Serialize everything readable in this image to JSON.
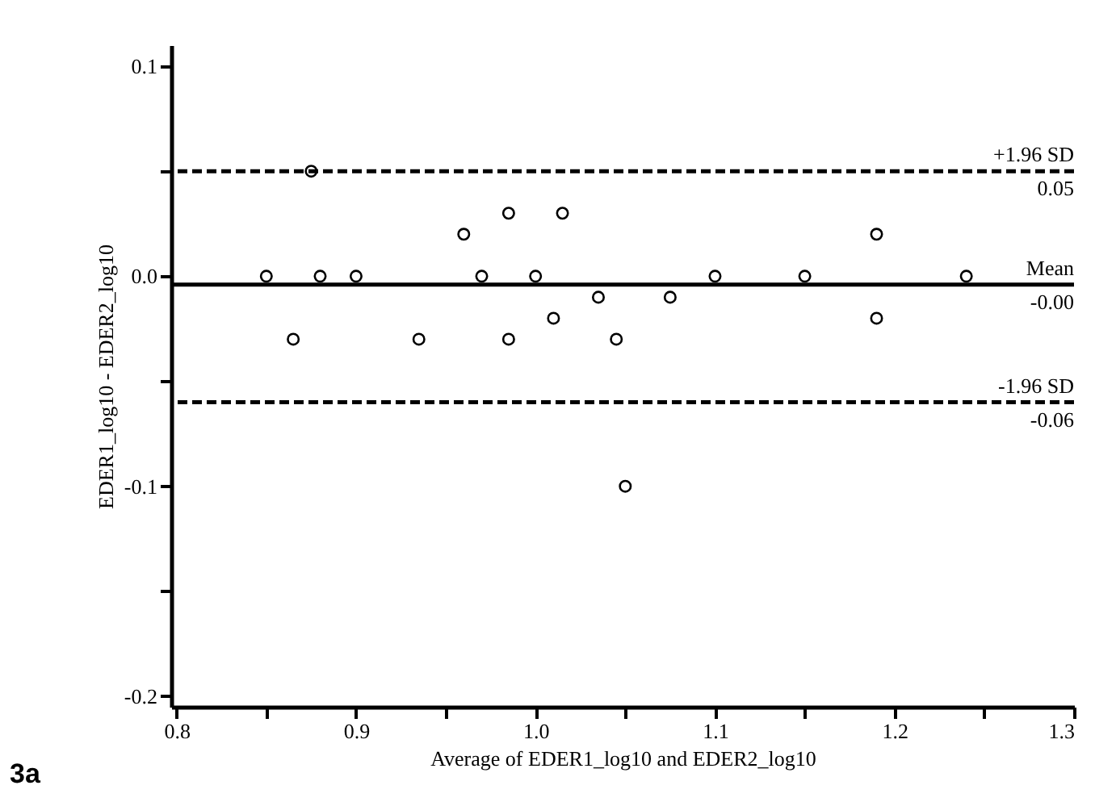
{
  "chart_data": {
    "type": "scatter",
    "xlabel": "Average of EDER1_log10 and EDER2_log10",
    "ylabel": "EDER1_log10 - EDER2_log10",
    "x": [
      0.85,
      0.865,
      0.875,
      0.88,
      0.9,
      0.935,
      0.96,
      0.97,
      0.985,
      0.985,
      1.0,
      1.01,
      1.015,
      1.035,
      1.045,
      1.05,
      1.075,
      1.1,
      1.15,
      1.19,
      1.19,
      1.24
    ],
    "series": [
      {
        "color": "#000000",
        "values": [
          0,
          -0.03,
          0.05,
          0,
          0,
          -0.03,
          0.02,
          0,
          0.03,
          -0.03,
          0,
          -0.02,
          0.03,
          -0.01,
          -0.03,
          -0.1,
          -0.01,
          0,
          0,
          0.02,
          -0.02,
          0
        ]
      }
    ],
    "marker": "circle",
    "grid": false,
    "legend": false,
    "xlim": [
      0.797,
      1.3
    ],
    "ylim": [
      -0.205,
      0.11
    ],
    "xticks": [
      0.8,
      {
        "value": 0.85,
        "label": null
      },
      0.9,
      {
        "value": 0.95,
        "label": null
      },
      {
        "value": 1.0,
        "label": "1.0"
      },
      {
        "value": 1.05,
        "label": null
      },
      1.1,
      {
        "value": 1.15,
        "label": null
      },
      1.2,
      {
        "value": 1.25,
        "label": null
      },
      1.3
    ],
    "yticks": [
      0.1,
      {
        "value": 0.05,
        "label": null
      },
      {
        "value": 0,
        "label": "0.0"
      },
      {
        "value": -0.05,
        "label": null
      },
      -0.1,
      {
        "value": -0.15,
        "label": null
      },
      -0.2
    ],
    "ref_lines": [
      {
        "axis": "y",
        "value": 0.05,
        "label": "+1.96 SD",
        "line_style": "dashed",
        "color": "#000000"
      },
      {
        "axis": "y",
        "value": -0.004,
        "label": "Mean",
        "line_style": "solid",
        "color": "#000000"
      },
      {
        "axis": "y",
        "value": -0.06,
        "label": "-1.96 SD",
        "line_style": "dashed",
        "color": "#000000"
      }
    ],
    "annotations": [
      {
        "text": "0.05",
        "y": 0.05
      },
      {
        "text": "-0.00",
        "y": -0.004
      },
      {
        "text": "-0.06",
        "y": -0.06
      },
      "3a"
    ]
  }
}
